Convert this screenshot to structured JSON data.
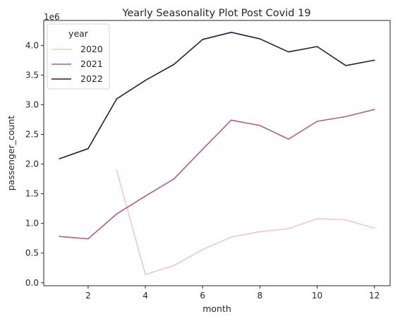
{
  "chart_data": {
    "type": "line",
    "title": "Yearly Seasonality Plot Post Covid 19",
    "xlabel": "month",
    "ylabel": "passenger_count",
    "y_offset_label": "1e6",
    "xlim": [
      0.45,
      12.55
    ],
    "ylim": [
      -0.05,
      4.42
    ],
    "x_ticks": [
      2,
      4,
      6,
      8,
      10,
      12
    ],
    "y_ticks": [
      0.0,
      0.5,
      1.0,
      1.5,
      2.0,
      2.5,
      3.0,
      3.5,
      4.0
    ],
    "y_tick_labels": [
      "0.0",
      "0.5",
      "1.0",
      "1.5",
      "2.0",
      "2.5",
      "3.0",
      "3.5",
      "4.0"
    ],
    "grid": false,
    "legend_title": "year",
    "legend_position": "top-left",
    "series": [
      {
        "name": "2020",
        "color": "#edcac3",
        "x": [
          3,
          4,
          5,
          6,
          7,
          8,
          9,
          10,
          11,
          12
        ],
        "y": [
          1.89,
          0.14,
          0.29,
          0.56,
          0.77,
          0.86,
          0.91,
          1.08,
          1.06,
          0.92
        ]
      },
      {
        "name": "2021",
        "color": "#a8608c",
        "x": [
          1,
          2,
          3,
          4,
          5,
          6,
          7,
          8,
          9,
          10,
          11,
          12
        ],
        "y": [
          0.78,
          0.74,
          1.16,
          1.46,
          1.75,
          2.25,
          2.74,
          2.65,
          2.42,
          2.72,
          2.8,
          2.92
        ]
      },
      {
        "name": "2022",
        "color": "#2b1c3d",
        "x": [
          1,
          2,
          3,
          4,
          5,
          6,
          7,
          8,
          9,
          10,
          11,
          12
        ],
        "y": [
          2.09,
          2.26,
          3.1,
          3.41,
          3.68,
          4.1,
          4.22,
          4.11,
          3.89,
          3.98,
          3.66,
          3.75
        ]
      }
    ]
  }
}
